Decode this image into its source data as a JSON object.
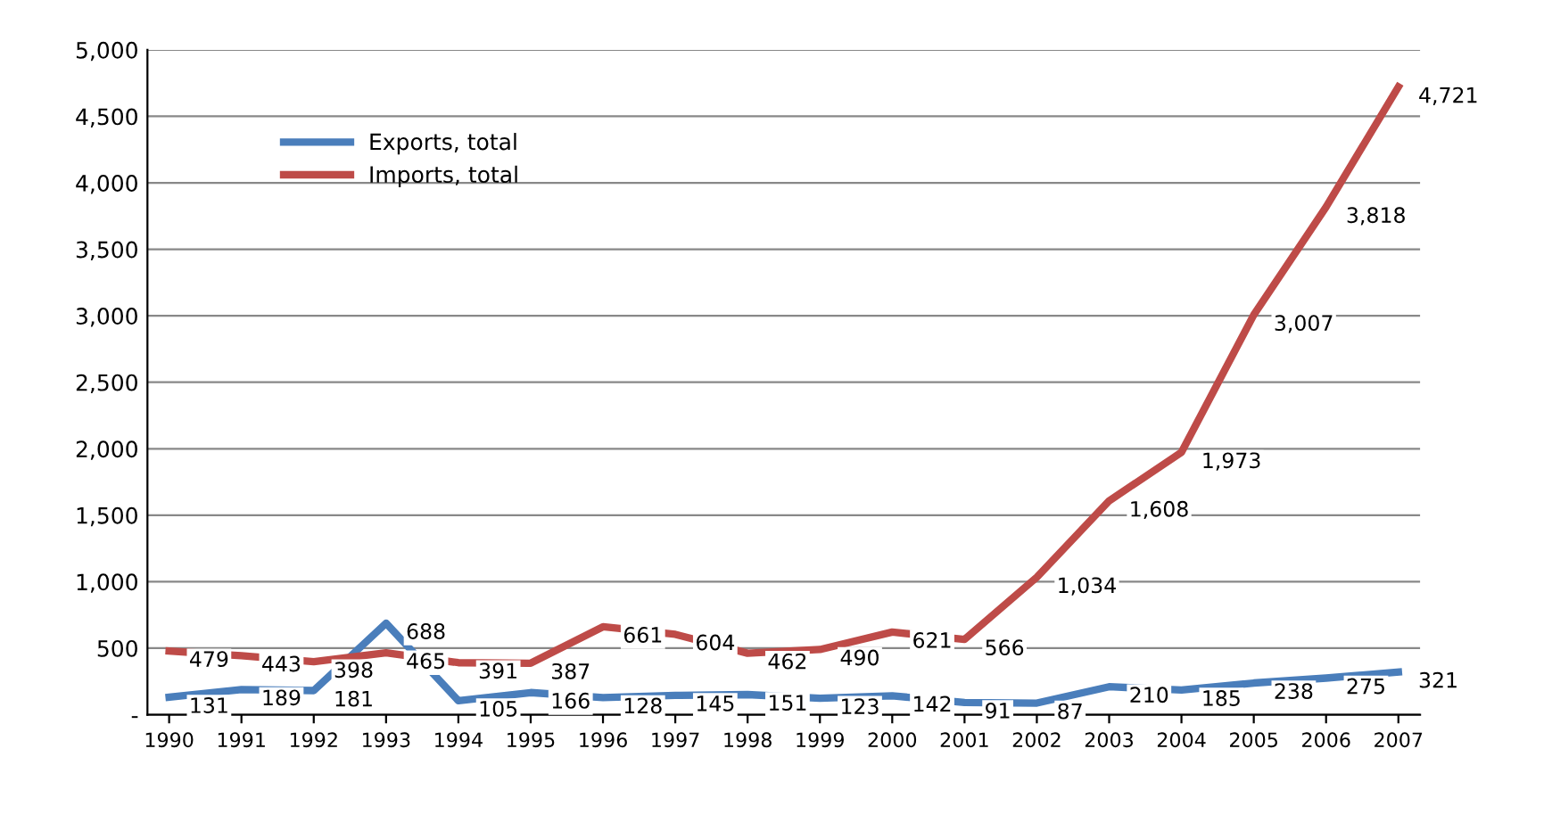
{
  "chart_data": {
    "type": "line",
    "categories": [
      "1990",
      "1991",
      "1992",
      "1993",
      "1994",
      "1995",
      "1996",
      "1997",
      "1998",
      "1999",
      "2000",
      "2001",
      "2002",
      "2003",
      "2004",
      "2005",
      "2006",
      "2007"
    ],
    "series": [
      {
        "name": "Exports, total",
        "color": "#4a7ebb",
        "values": [
          131,
          189,
          181,
          688,
          105,
          166,
          128,
          145,
          151,
          123,
          142,
          91,
          87,
          210,
          185,
          238,
          275,
          321
        ],
        "value_labels": [
          "131",
          "189",
          "181",
          "688",
          "105",
          "166",
          "128",
          "145",
          "151",
          "123",
          "142",
          "91",
          "87",
          "210",
          "185",
          "238",
          "275",
          "321"
        ]
      },
      {
        "name": "Imports, total",
        "color": "#be4b48",
        "values": [
          479,
          443,
          398,
          465,
          391,
          387,
          661,
          604,
          462,
          490,
          621,
          566,
          1034,
          1608,
          1973,
          3007,
          3818,
          4721
        ],
        "value_labels": [
          "479",
          "443",
          "398",
          "465",
          "391",
          "387",
          "661",
          "604",
          "462",
          "490",
          "621",
          "566",
          "1,034",
          "1,608",
          "1,973",
          "3,007",
          "3,818",
          "4,721"
        ]
      }
    ],
    "ylim": [
      0,
      5000
    ],
    "yticks": [
      {
        "value": 0,
        "label": "-"
      },
      {
        "value": 500,
        "label": "500"
      },
      {
        "value": 1000,
        "label": "1,000"
      },
      {
        "value": 1500,
        "label": "1,500"
      },
      {
        "value": 2000,
        "label": "2,000"
      },
      {
        "value": 2500,
        "label": "2,500"
      },
      {
        "value": 3000,
        "label": "3,000"
      },
      {
        "value": 3500,
        "label": "3,500"
      },
      {
        "value": 4000,
        "label": "4,000"
      },
      {
        "value": 4500,
        "label": "4,500"
      },
      {
        "value": 5000,
        "label": "5,000"
      }
    ],
    "grid": "y",
    "legend": "top left",
    "marker": "none",
    "line_style": "solid"
  }
}
